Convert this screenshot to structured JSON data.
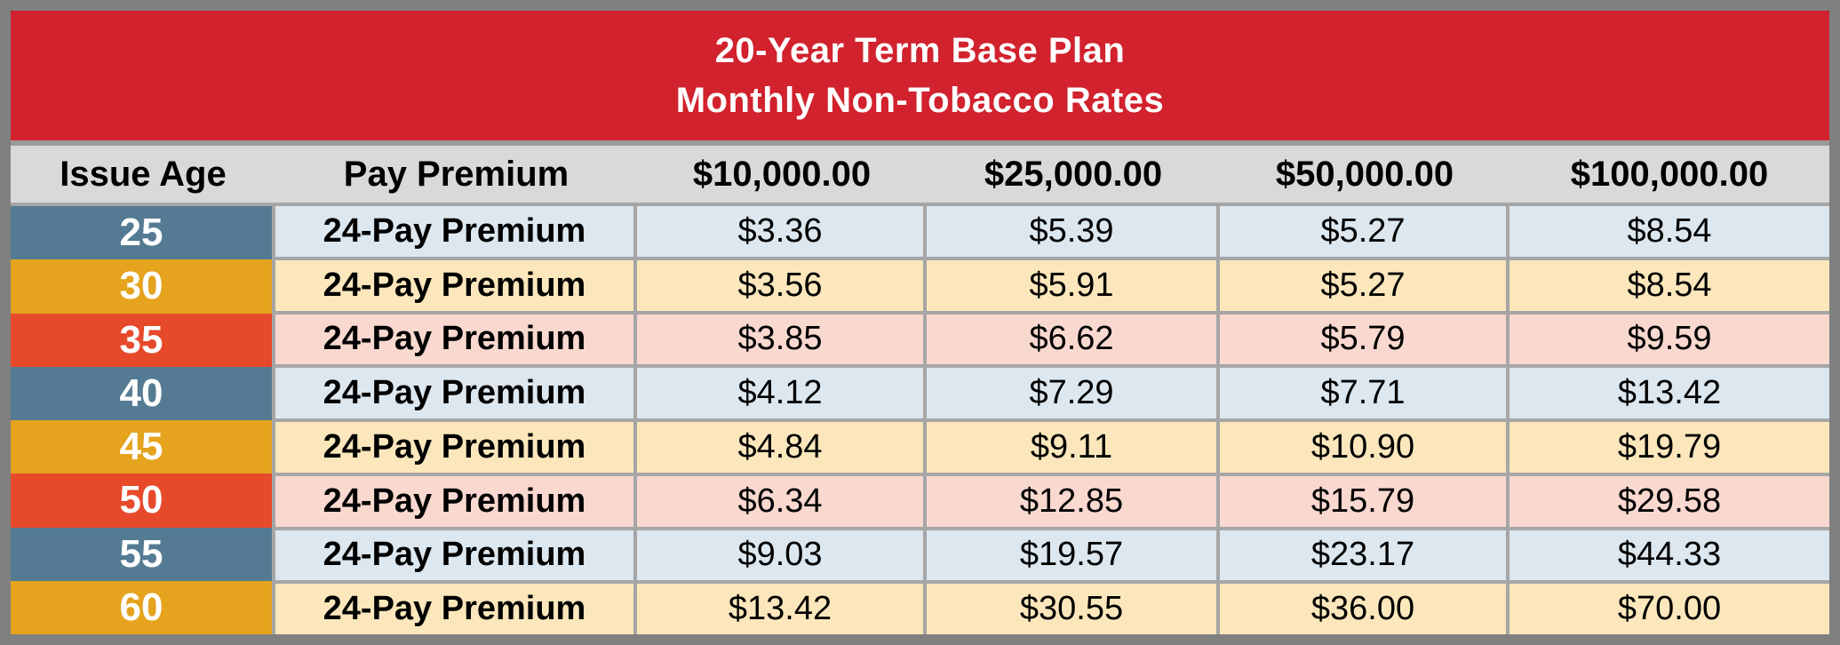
{
  "banner": {
    "line1": "20-Year Term Base Plan",
    "line2": "Monthly Non-Tobacco Rates"
  },
  "table": {
    "columns": [
      "Issue Age",
      "Pay Premium",
      "$10,000.00",
      "$25,000.00",
      "$50,000.00",
      "$100,000.00"
    ],
    "rows": [
      {
        "age": "25",
        "premium_label": "24-Pay Premium",
        "values": [
          "$3.36",
          "$5.39",
          "$5.27",
          "$8.54"
        ]
      },
      {
        "age": "30",
        "premium_label": "24-Pay Premium",
        "values": [
          "$3.56",
          "$5.91",
          "$5.27",
          "$8.54"
        ]
      },
      {
        "age": "35",
        "premium_label": "24-Pay Premium",
        "values": [
          "$3.85",
          "$6.62",
          "$5.79",
          "$9.59"
        ]
      },
      {
        "age": "40",
        "premium_label": "24-Pay Premium",
        "values": [
          "$4.12",
          "$7.29",
          "$7.71",
          "$13.42"
        ]
      },
      {
        "age": "45",
        "premium_label": "24-Pay Premium",
        "values": [
          "$4.84",
          "$9.11",
          "$10.90",
          "$19.79"
        ]
      },
      {
        "age": "50",
        "premium_label": "24-Pay Premium",
        "values": [
          "$6.34",
          "$12.85",
          "$15.79",
          "$29.58"
        ]
      },
      {
        "age": "55",
        "premium_label": "24-Pay Premium",
        "values": [
          "$9.03",
          "$19.57",
          "$23.17",
          "$44.33"
        ]
      },
      {
        "age": "60",
        "premium_label": "24-Pay Premium",
        "values": [
          "$13.42",
          "$30.55",
          "$36.00",
          "$70.00"
        ]
      }
    ]
  },
  "colors": {
    "banner_red": "#D1222D",
    "header_gray": "#D9D9D9",
    "gridline_gray": "#A6A6A6",
    "outer_border_gray": "#808080",
    "age_blue": "#547B93",
    "age_gold": "#E5A31E",
    "age_orange": "#E7492B",
    "row_light_blue": "#DCE7EF",
    "row_light_yellow": "#FBE7BB",
    "row_light_pink": "#F9D8CF"
  },
  "chart_data": {
    "type": "table",
    "title": "20-Year Term Base Plan Monthly Non-Tobacco Rates",
    "columns": [
      "Issue Age",
      "Pay Premium",
      "$10,000.00",
      "$25,000.00",
      "$50,000.00",
      "$100,000.00"
    ],
    "rows": [
      [
        "25",
        "24-Pay Premium",
        "$3.36",
        "$5.39",
        "$5.27",
        "$8.54"
      ],
      [
        "30",
        "24-Pay Premium",
        "$3.56",
        "$5.91",
        "$5.27",
        "$8.54"
      ],
      [
        "35",
        "24-Pay Premium",
        "$3.85",
        "$6.62",
        "$5.79",
        "$9.59"
      ],
      [
        "40",
        "24-Pay Premium",
        "$4.12",
        "$7.29",
        "$7.71",
        "$13.42"
      ],
      [
        "45",
        "24-Pay Premium",
        "$4.84",
        "$9.11",
        "$10.90",
        "$19.79"
      ],
      [
        "50",
        "24-Pay Premium",
        "$6.34",
        "$12.85",
        "$15.79",
        "$29.58"
      ],
      [
        "55",
        "24-Pay Premium",
        "$9.03",
        "$19.57",
        "$23.17",
        "$44.33"
      ],
      [
        "60",
        "24-Pay Premium",
        "$13.42",
        "$30.55",
        "$36.00",
        "$70.00"
      ]
    ]
  }
}
